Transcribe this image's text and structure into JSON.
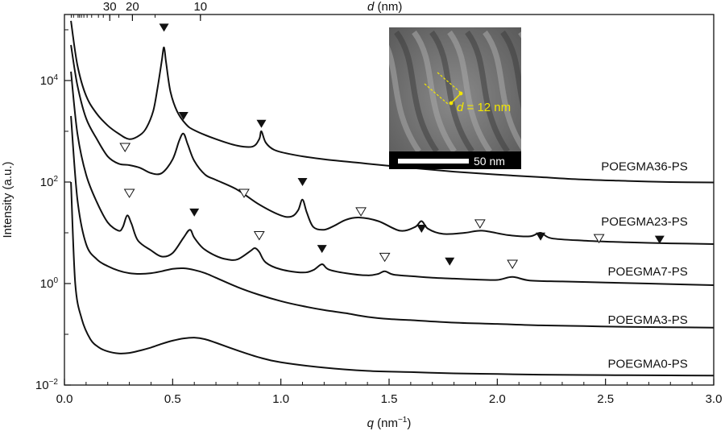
{
  "chart_data": {
    "type": "line",
    "xlabel": "q (nm−1)",
    "xlabel_main": "q",
    "xlabel_unit": " (nm",
    "xlabel_exp": "−1",
    "xlabel_close": ")",
    "ylabel": "Intensity (a.u.)",
    "top_axis_label": "d (nm)",
    "top_axis_label_main": "d",
    "top_axis_label_unit": " (nm)",
    "x_scale": "linear",
    "y_scale": "log",
    "xlim": [
      0.0,
      3.0
    ],
    "ylim": [
      0.01,
      200000
    ],
    "x_ticks": [
      "0.0",
      "0.5",
      "1.0",
      "1.5",
      "2.0",
      "2.5",
      "3.0"
    ],
    "y_ticks": [
      {
        "value": 0.01,
        "base": "10",
        "exp": "−2"
      },
      {
        "value": 1,
        "base": "10",
        "exp": "0"
      },
      {
        "value": 100,
        "base": "10",
        "exp": "2"
      },
      {
        "value": 10000,
        "base": "10",
        "exp": "4"
      }
    ],
    "top_ticks": [
      {
        "label": "30",
        "d": 30
      },
      {
        "label": "20",
        "d": 20
      },
      {
        "label": "10",
        "d": 10
      }
    ],
    "grid": false,
    "legend": "none",
    "series": [
      {
        "name": "POEGMA36-PS",
        "x": [
          0.03,
          0.06,
          0.1,
          0.15,
          0.2,
          0.25,
          0.3,
          0.35,
          0.38,
          0.41,
          0.43,
          0.45,
          0.46,
          0.47,
          0.49,
          0.52,
          0.56,
          0.6,
          0.7,
          0.8,
          0.87,
          0.9,
          0.91,
          0.93,
          0.97,
          1.05,
          1.2,
          1.4,
          1.6,
          1.8,
          2.0,
          2.2,
          2.4,
          2.6,
          2.8,
          3.0
        ],
        "y": [
          150000,
          20000,
          5000,
          2200,
          1300,
          900,
          700,
          850,
          1200,
          2500,
          7000,
          25000,
          45000,
          22000,
          6000,
          2500,
          1400,
          1050,
          700,
          520,
          500,
          700,
          1000,
          600,
          430,
          350,
          280,
          230,
          190,
          160,
          140,
          125,
          112,
          105,
          100,
          98
        ]
      },
      {
        "name": "POEGMA23-PS",
        "x": [
          0.03,
          0.06,
          0.1,
          0.15,
          0.2,
          0.25,
          0.3,
          0.35,
          0.4,
          0.45,
          0.5,
          0.53,
          0.55,
          0.57,
          0.6,
          0.65,
          0.7,
          0.8,
          0.9,
          1.0,
          1.05,
          1.08,
          1.1,
          1.12,
          1.15,
          1.2,
          1.25,
          1.3,
          1.36,
          1.45,
          1.55,
          1.62,
          1.65,
          1.68,
          1.75,
          1.85,
          1.93,
          2.05,
          2.15,
          2.2,
          2.25,
          2.4,
          2.6,
          2.8,
          3.0
        ],
        "y": [
          50000,
          8000,
          1800,
          700,
          320,
          230,
          215,
          190,
          150,
          150,
          280,
          650,
          900,
          550,
          260,
          140,
          110,
          70,
          36,
          22,
          21,
          28,
          45,
          25,
          13,
          11.5,
          14,
          18,
          20,
          17,
          11,
          13,
          17,
          12,
          9.5,
          10,
          11,
          9,
          8.5,
          10,
          7.8,
          7,
          6.5,
          6.2,
          6
        ]
      },
      {
        "name": "POEGMA7-PS",
        "x": [
          0.03,
          0.06,
          0.1,
          0.15,
          0.2,
          0.25,
          0.27,
          0.29,
          0.31,
          0.34,
          0.4,
          0.45,
          0.5,
          0.55,
          0.58,
          0.6,
          0.64,
          0.7,
          0.75,
          0.8,
          0.86,
          0.88,
          0.9,
          0.93,
          1.0,
          1.1,
          1.15,
          1.19,
          1.22,
          1.3,
          1.4,
          1.45,
          1.48,
          1.52,
          1.6,
          1.7,
          1.8,
          1.9,
          2.0,
          2.07,
          2.15,
          2.3,
          2.5,
          2.7,
          2.9,
          3.0
        ],
        "y": [
          15000,
          900,
          140,
          40,
          16,
          11,
          13,
          22,
          15,
          7,
          4.5,
          3.4,
          4,
          8,
          11.5,
          8,
          5,
          3.5,
          3,
          3,
          4.4,
          5,
          4.2,
          2.6,
          1.9,
          1.65,
          1.85,
          2.4,
          1.9,
          1.6,
          1.45,
          1.55,
          1.75,
          1.5,
          1.4,
          1.3,
          1.25,
          1.2,
          1.18,
          1.35,
          1.15,
          1.1,
          1.05,
          1.0,
          0.95,
          0.93
        ]
      },
      {
        "name": "POEGMA3-PS",
        "x": [
          0.03,
          0.06,
          0.1,
          0.15,
          0.2,
          0.25,
          0.3,
          0.35,
          0.4,
          0.45,
          0.5,
          0.55,
          0.6,
          0.65,
          0.7,
          0.8,
          0.9,
          1.0,
          1.1,
          1.2,
          1.3,
          1.4,
          1.5,
          1.6,
          1.8,
          2.0,
          2.2,
          2.4,
          2.6,
          2.8,
          3.0
        ],
        "y": [
          2000,
          45,
          6,
          3,
          2.2,
          1.8,
          1.6,
          1.55,
          1.6,
          1.75,
          1.95,
          2.0,
          1.85,
          1.6,
          1.3,
          0.85,
          0.6,
          0.45,
          0.36,
          0.3,
          0.26,
          0.22,
          0.2,
          0.19,
          0.17,
          0.16,
          0.15,
          0.145,
          0.14,
          0.138,
          0.135
        ]
      },
      {
        "name": "POEGMA0-PS",
        "x": [
          0.03,
          0.05,
          0.08,
          0.12,
          0.16,
          0.2,
          0.25,
          0.3,
          0.35,
          0.4,
          0.45,
          0.5,
          0.55,
          0.6,
          0.65,
          0.7,
          0.8,
          0.9,
          1.0,
          1.2,
          1.4,
          1.6,
          1.8,
          2.0,
          2.2,
          2.4,
          2.6,
          2.8,
          3.0
        ],
        "y": [
          100,
          1.0,
          0.2,
          0.08,
          0.055,
          0.046,
          0.042,
          0.043,
          0.048,
          0.055,
          0.065,
          0.075,
          0.083,
          0.086,
          0.08,
          0.068,
          0.048,
          0.035,
          0.028,
          0.022,
          0.019,
          0.018,
          0.017,
          0.0165,
          0.016,
          0.0158,
          0.0156,
          0.0155,
          0.0154
        ]
      }
    ],
    "series_labels": [
      {
        "text": "POEGMA36-PS",
        "x": 2.88,
        "y": 170
      },
      {
        "text": "POEGMA23-PS",
        "x": 2.88,
        "y": 14
      },
      {
        "text": "POEGMA7-PS",
        "x": 2.88,
        "y": 1.45
      },
      {
        "text": "POEGMA3-PS",
        "x": 2.88,
        "y": 0.16
      },
      {
        "text": "POEGMA0-PS",
        "x": 2.88,
        "y": 0.022
      }
    ],
    "filled_markers": [
      {
        "x": 0.46,
        "y": 110000
      },
      {
        "x": 0.55,
        "y": 2000
      },
      {
        "x": 0.91,
        "y": 1400
      },
      {
        "x": 1.1,
        "y": 100
      },
      {
        "x": 0.6,
        "y": 25
      },
      {
        "x": 1.65,
        "y": 12
      },
      {
        "x": 1.19,
        "y": 4.8
      },
      {
        "x": 2.2,
        "y": 8.4
      },
      {
        "x": 1.78,
        "y": 2.7
      },
      {
        "x": 2.75,
        "y": 7.3
      }
    ],
    "open_markers": [
      {
        "x": 0.28,
        "y": 480
      },
      {
        "x": 0.3,
        "y": 60
      },
      {
        "x": 0.83,
        "y": 60
      },
      {
        "x": 0.9,
        "y": 8.8
      },
      {
        "x": 1.37,
        "y": 26
      },
      {
        "x": 1.48,
        "y": 3.3
      },
      {
        "x": 1.92,
        "y": 15
      },
      {
        "x": 2.07,
        "y": 2.4
      },
      {
        "x": 2.47,
        "y": 7.7
      }
    ]
  },
  "inset": {
    "annotation": "d = 12 nm",
    "annotation_main": "d",
    "annotation_rest": " = 12 nm",
    "scale_bar_label": "50 nm",
    "annotation_color": "#f2e600"
  }
}
